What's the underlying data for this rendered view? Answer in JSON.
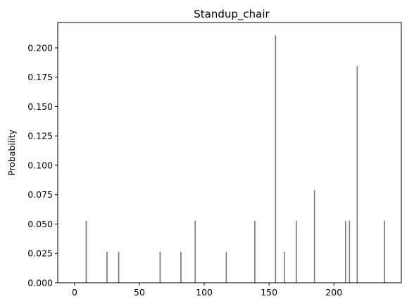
{
  "chart_data": {
    "type": "bar",
    "title": "Standup_chair",
    "xlabel": "",
    "ylabel": "Probability",
    "xlim": [
      -13,
      252
    ],
    "ylim": [
      0,
      0.2215
    ],
    "x_ticks": [
      0,
      50,
      100,
      150,
      200
    ],
    "y_ticks": [
      0.0,
      0.025,
      0.05,
      0.075,
      0.1,
      0.125,
      0.15,
      0.175,
      0.2
    ],
    "y_tick_labels": [
      "0.000",
      "0.025",
      "0.050",
      "0.075",
      "0.100",
      "0.125",
      "0.150",
      "0.175",
      "0.200"
    ],
    "grid": false,
    "x": [
      9,
      25,
      34,
      66,
      82,
      93,
      117,
      139,
      155,
      162,
      171,
      185,
      209,
      212,
      218,
      239
    ],
    "values": [
      0.0526,
      0.0263,
      0.0263,
      0.0263,
      0.0263,
      0.0526,
      0.0263,
      0.0526,
      0.2105,
      0.0263,
      0.0526,
      0.0789,
      0.0526,
      0.0526,
      0.1842,
      0.0526
    ],
    "bar_color": "#808080",
    "bar_edge_color": "#555555"
  }
}
